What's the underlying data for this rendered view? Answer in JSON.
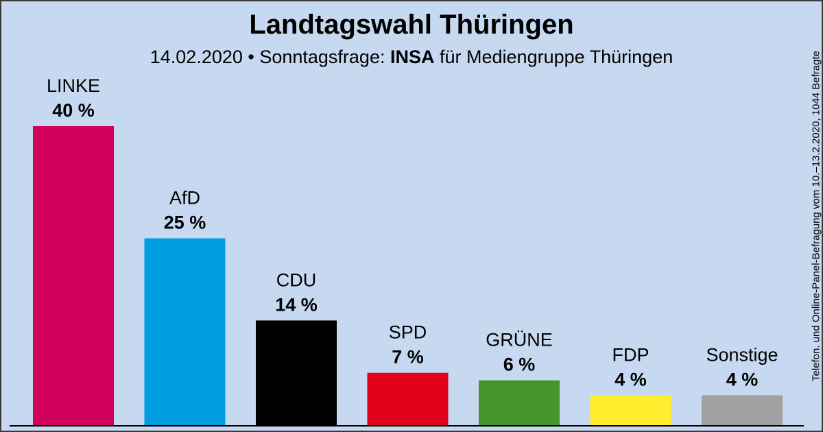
{
  "title": "Landtagswahl Thüringen",
  "subtitle": {
    "prefix": "14.02.2020 • Sonntagsfrage: ",
    "institute": "INSA",
    "suffix": " für Mediengruppe Thüringen"
  },
  "side_note": "Telefon. und Online-Panel-Befragung vom 10.–13.2.2020, 1044 Befragte",
  "chart_data": {
    "type": "bar",
    "categories": [
      "LINKE",
      "AfD",
      "CDU",
      "SPD",
      "GRÜNE",
      "FDP",
      "Sonstige"
    ],
    "values": [
      40,
      25,
      14,
      7,
      6,
      4,
      4
    ],
    "value_labels": [
      "40 %",
      "25 %",
      "14 %",
      "7 %",
      "6 %",
      "4 %",
      "4 %"
    ],
    "colors": [
      "#d3005b",
      "#009ee0",
      "#000000",
      "#e3001a",
      "#46962b",
      "#ffed2e",
      "#a0a0a0"
    ],
    "unit": "%",
    "ylim": [
      0,
      40
    ],
    "grid": false,
    "legend": "none"
  }
}
